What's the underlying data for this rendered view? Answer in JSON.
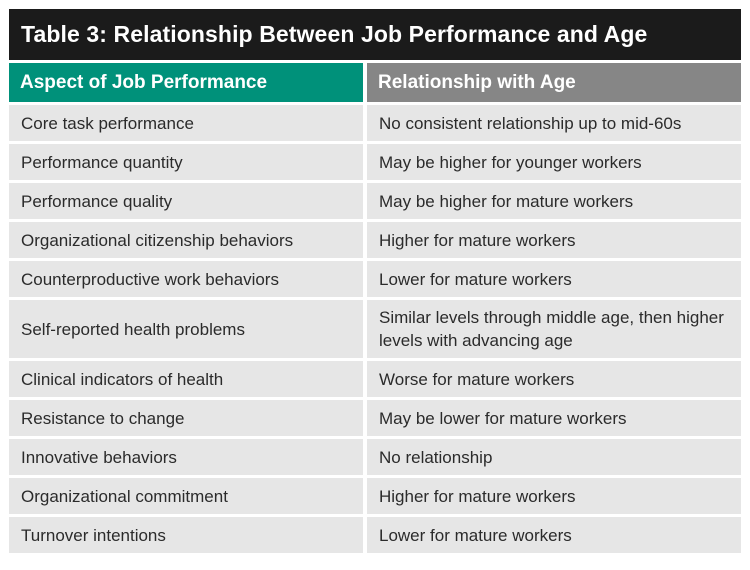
{
  "table": {
    "title": "Table 3: Relationship Between Job Performance and Age",
    "headers": {
      "aspect": "Aspect of Job Performance",
      "relationship": "Relationship with Age"
    },
    "rows": [
      {
        "aspect": "Core task performance",
        "relationship": "No consistent relationship up to mid-60s"
      },
      {
        "aspect": "Performance quantity",
        "relationship": "May be higher for younger workers"
      },
      {
        "aspect": "Performance quality",
        "relationship": "May be higher for mature workers"
      },
      {
        "aspect": "Organizational citizenship behaviors",
        "relationship": "Higher for mature workers"
      },
      {
        "aspect": "Counterproductive work behaviors",
        "relationship": "Lower for mature workers"
      },
      {
        "aspect": "Self-reported health problems",
        "relationship": "Similar levels through middle age, then higher levels with advancing age"
      },
      {
        "aspect": "Clinical indicators of health",
        "relationship": "Worse for mature workers"
      },
      {
        "aspect": "Resistance to change",
        "relationship": "May be lower for mature workers"
      },
      {
        "aspect": "Innovative behaviors",
        "relationship": "No relationship"
      },
      {
        "aspect": "Organizational commitment",
        "relationship": "Higher for mature workers"
      },
      {
        "aspect": "Turnover intentions",
        "relationship": "Lower for mature workers"
      }
    ]
  },
  "colors": {
    "title_bg": "#1b1b1b",
    "header_left_bg": "#00917a",
    "header_right_bg": "#868686",
    "cell_bg": "#e6e6e6"
  }
}
